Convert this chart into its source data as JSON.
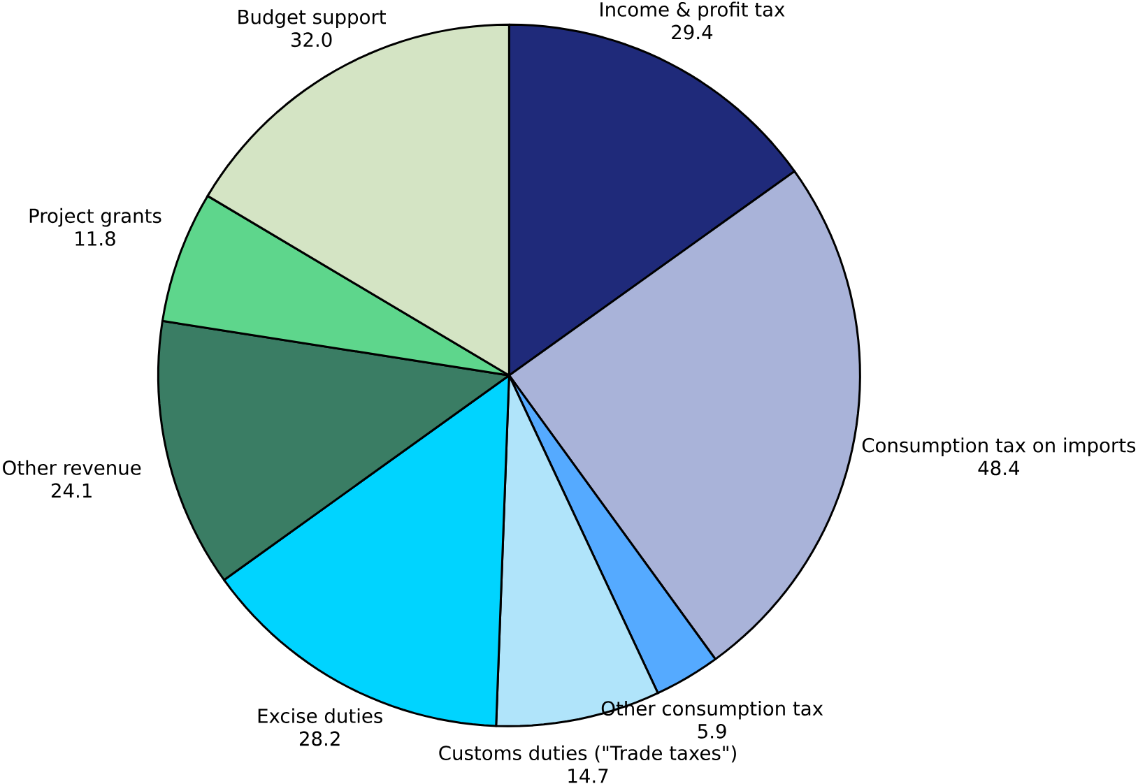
{
  "chart_data": {
    "type": "pie",
    "categories": [
      "Income & profit tax",
      "Consumption tax on imports",
      "Other consumption tax",
      "Customs duties (\"Trade taxes\")",
      "Excise duties",
      "Other revenue",
      "Project grants",
      "Budget support"
    ],
    "values": [
      29.4,
      48.4,
      5.9,
      14.7,
      28.2,
      24.1,
      11.8,
      32.0
    ],
    "value_labels": [
      "29.4",
      "48.4",
      "5.9",
      "14.7",
      "28.2",
      "24.1",
      "11.8",
      "32.0"
    ],
    "colors": [
      "#1f2a7a",
      "#a9b3d9",
      "#55aaff",
      "#b0e4fa",
      "#00d4ff",
      "#3a7d64",
      "#5ed68c",
      "#d4e4c4"
    ]
  }
}
